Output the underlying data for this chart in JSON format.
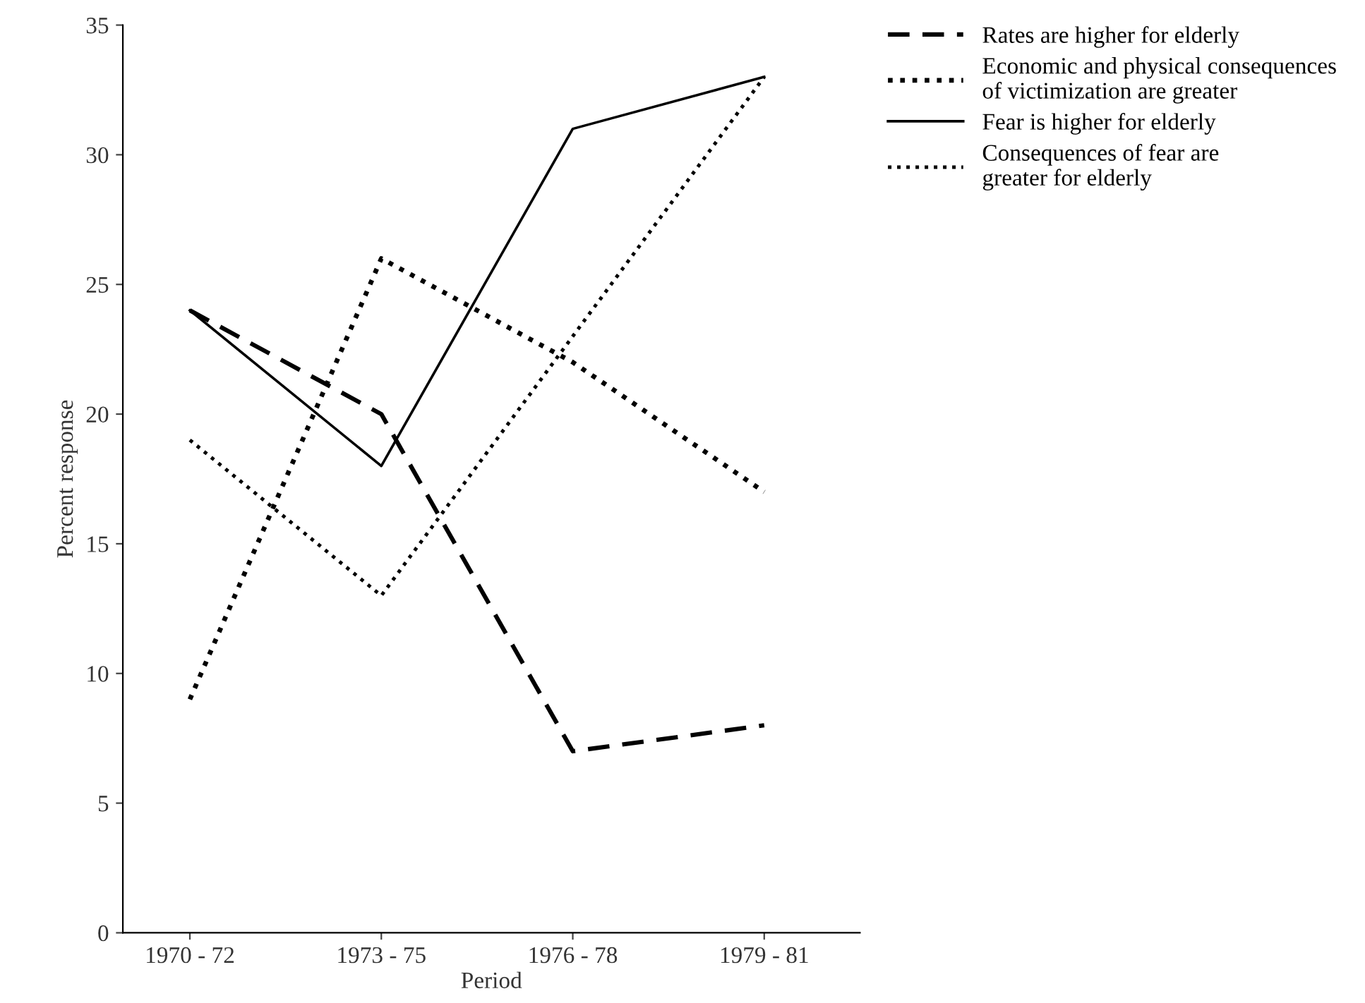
{
  "chart_data": {
    "type": "line",
    "xlabel": "Period",
    "ylabel": "Percent response",
    "categories": [
      "1970 - 72",
      "1973 - 75",
      "1976 - 78",
      "1979 - 81"
    ],
    "series": [
      {
        "name": "Rates are higher for elderly",
        "color": "#000000",
        "line_style": "dashed",
        "values": [
          24,
          20,
          7,
          8
        ]
      },
      {
        "name": "Economic and physical consequences\nof victimization are greater",
        "color": "#000000",
        "line_style": "dotted",
        "values": [
          9,
          26,
          22,
          17
        ]
      },
      {
        "name": "Fear is higher for elderly",
        "color": "#000000",
        "line_style": "solid",
        "values": [
          24,
          18,
          31,
          33
        ]
      },
      {
        "name": "Consequences of fear are\ngreater for elderly",
        "color": "#000000",
        "line_style": "dotted",
        "values": [
          19,
          13,
          23,
          33
        ]
      }
    ],
    "ylim": [
      0,
      35
    ],
    "yticks": [
      0,
      5,
      10,
      15,
      20,
      25,
      30,
      35
    ],
    "grid": false,
    "legend": "top right",
    "marker": "none"
  }
}
